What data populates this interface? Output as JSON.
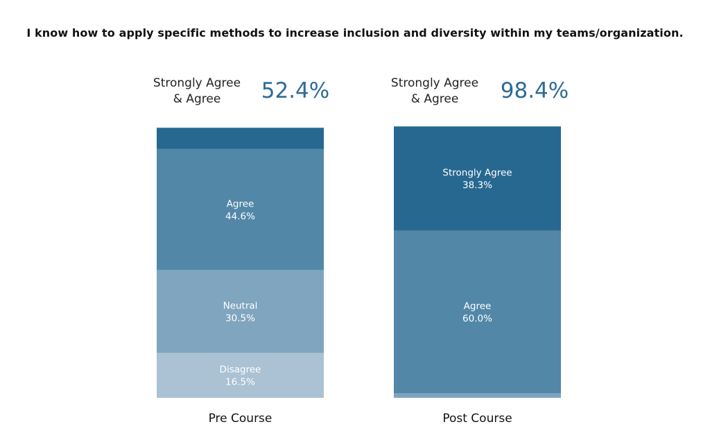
{
  "chart_data": {
    "type": "bar",
    "subtype": "stacked-100",
    "title": "I know how to apply specific methods to increase inclusion and diversity within my teams/organization.",
    "categories": [
      "Pre Course",
      "Post Course"
    ],
    "summary_label_line1": "Strongly Agree",
    "summary_label_line2": "& Agree",
    "summaries": [
      "52.4%",
      "98.4%"
    ],
    "series": [
      {
        "name": "Disagree",
        "values": [
          16.5,
          0.0
        ],
        "color": "#aac2d3",
        "shown_labels": [
          "16.5%",
          ""
        ]
      },
      {
        "name": "Neutral",
        "values": [
          30.5,
          1.6
        ],
        "color": "#7fa5bf",
        "shown_labels": [
          "30.5%",
          ""
        ]
      },
      {
        "name": "Agree",
        "values": [
          44.6,
          60.0
        ],
        "color": "#5287a8",
        "shown_labels": [
          "44.6%",
          "60.0%"
        ]
      },
      {
        "name": "Strongly Agree",
        "values": [
          7.8,
          38.3
        ],
        "color": "#276890",
        "shown_labels": [
          "",
          "38.3%"
        ]
      }
    ],
    "accent_color": "#2d6b97",
    "ylim": [
      0,
      100
    ],
    "legend": "none",
    "grid": false
  }
}
